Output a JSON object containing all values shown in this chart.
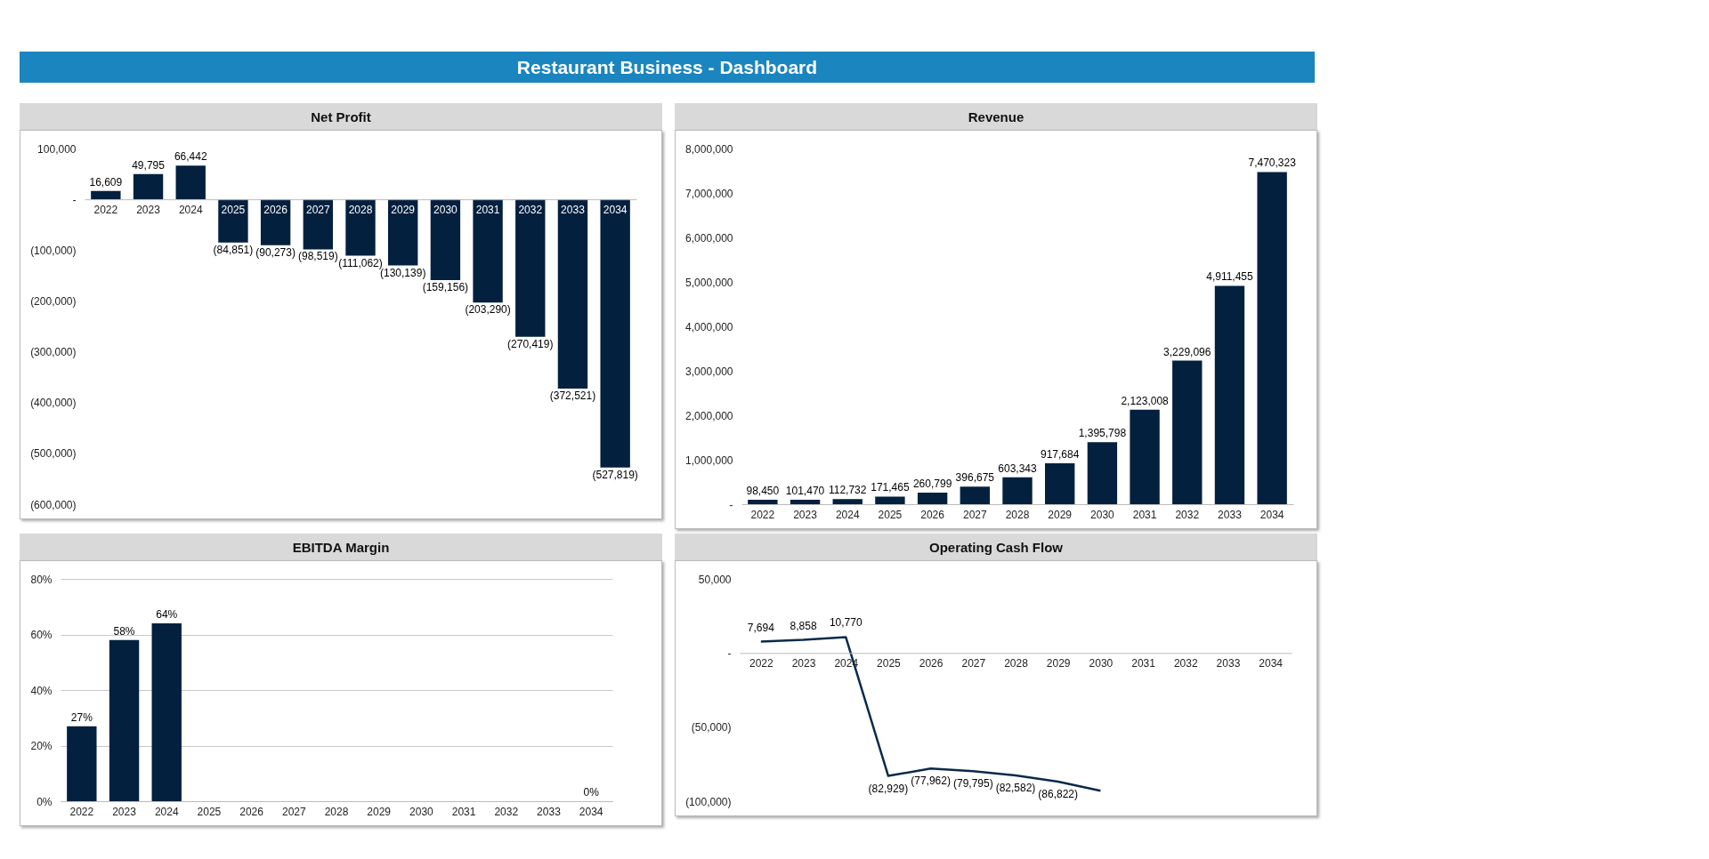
{
  "chart_data": [
    {
      "type": "bar",
      "title": "Net Profit",
      "annotations": [
        "Restaurant Business - Dashboard"
      ],
      "categories": [
        "2022",
        "2023",
        "2024",
        "2025",
        "2026",
        "2027",
        "2028",
        "2029",
        "2030",
        "2031",
        "2032",
        "2033",
        "2034"
      ],
      "color": "#03203f",
      "values": [
        16609,
        49795,
        66442,
        -84851,
        -90273,
        -98519,
        -111062,
        -130139,
        -159156,
        -203290,
        -270419,
        -372521,
        -527819
      ],
      "value_labels": [
        "16,609",
        "49,795",
        "66,442",
        "(84,851)",
        "(90,273)",
        "(98,519)",
        "(111,062)",
        "(130,139)",
        "(159,156)",
        "(203,290)",
        "(270,419)",
        "(372,521)",
        "(527,819)"
      ],
      "ylim": [
        -600000,
        100000
      ],
      "yticks": [
        {
          "value": 100000,
          "label": "100,000"
        },
        {
          "value": 0,
          "label": "-"
        },
        {
          "value": -100000,
          "label": "(100,000)"
        },
        {
          "value": -200000,
          "label": "(200,000)"
        },
        {
          "value": -300000,
          "label": "(300,000)"
        },
        {
          "value": -400000,
          "label": "(400,000)"
        },
        {
          "value": -500000,
          "label": "(500,000)"
        },
        {
          "value": -600000,
          "label": "(600,000)"
        }
      ]
    },
    {
      "type": "bar",
      "title": "Revenue",
      "categories": [
        "2022",
        "2023",
        "2024",
        "2025",
        "2026",
        "2027",
        "2028",
        "2029",
        "2030",
        "2031",
        "2032",
        "2033",
        "2034"
      ],
      "color": "#03203f",
      "values": [
        98450,
        101470,
        112732,
        171465,
        260799,
        396675,
        603343,
        917684,
        1395798,
        2123008,
        3229096,
        4911455,
        7470323
      ],
      "value_labels": [
        "98,450",
        "101,470",
        "112,732",
        "171,465",
        "260,799",
        "396,675",
        "603,343",
        "917,684",
        "1,395,798",
        "2,123,008",
        "3,229,096",
        "4,911,455",
        "7,470,323"
      ],
      "ylim": [
        0,
        8000000
      ],
      "yticks": [
        {
          "value": 0,
          "label": "-"
        },
        {
          "value": 1000000,
          "label": "1,000,000"
        },
        {
          "value": 2000000,
          "label": "2,000,000"
        },
        {
          "value": 3000000,
          "label": "3,000,000"
        },
        {
          "value": 4000000,
          "label": "4,000,000"
        },
        {
          "value": 5000000,
          "label": "5,000,000"
        },
        {
          "value": 6000000,
          "label": "6,000,000"
        },
        {
          "value": 7000000,
          "label": "7,000,000"
        },
        {
          "value": 8000000,
          "label": "8,000,000"
        }
      ]
    },
    {
      "type": "bar",
      "title": "EBITDA Margin",
      "categories": [
        "2022",
        "2023",
        "2024",
        "2025",
        "2026",
        "2027",
        "2028",
        "2029",
        "2030",
        "2031",
        "2032",
        "2033",
        "2034"
      ],
      "color": "#03203f",
      "values": [
        27,
        58,
        64,
        null,
        null,
        null,
        null,
        null,
        null,
        null,
        null,
        null,
        0
      ],
      "value_labels": [
        "27%",
        "58%",
        "64%",
        null,
        null,
        null,
        null,
        null,
        null,
        null,
        null,
        null,
        "0%"
      ],
      "ylim": [
        0,
        80
      ],
      "yticks": [
        {
          "value": 0,
          "label": "0%"
        },
        {
          "value": 20,
          "label": "20%"
        },
        {
          "value": 40,
          "label": "40%"
        },
        {
          "value": 60,
          "label": "60%"
        },
        {
          "value": 80,
          "label": "80%"
        }
      ],
      "grid": "y"
    },
    {
      "type": "line",
      "title": "Operating Cash Flow",
      "categories": [
        "2022",
        "2023",
        "2024",
        "2025",
        "2026",
        "2027",
        "2028",
        "2029",
        "2030",
        "2031",
        "2032",
        "2033",
        "2034"
      ],
      "color": "#0b2a4a",
      "marker": "none",
      "line_style": "solid",
      "values": [
        7694,
        8858,
        10770,
        -82929,
        -77962,
        -79795,
        -82582,
        -86822,
        -93000,
        null,
        null,
        null,
        null
      ],
      "value_labels": [
        "7,694",
        "8,858",
        "10,770",
        "(82,929)",
        "(77,962)",
        "(79,795)",
        "(82,582)",
        "(86,822)",
        null,
        null,
        null,
        null,
        null
      ],
      "ylim": [
        -100000,
        50000
      ],
      "yticks": [
        {
          "value": 50000,
          "label": "50,000"
        },
        {
          "value": 0,
          "label": "-"
        },
        {
          "value": -50000,
          "label": "(50,000)"
        },
        {
          "value": -100000,
          "label": "(100,000)"
        }
      ]
    }
  ]
}
